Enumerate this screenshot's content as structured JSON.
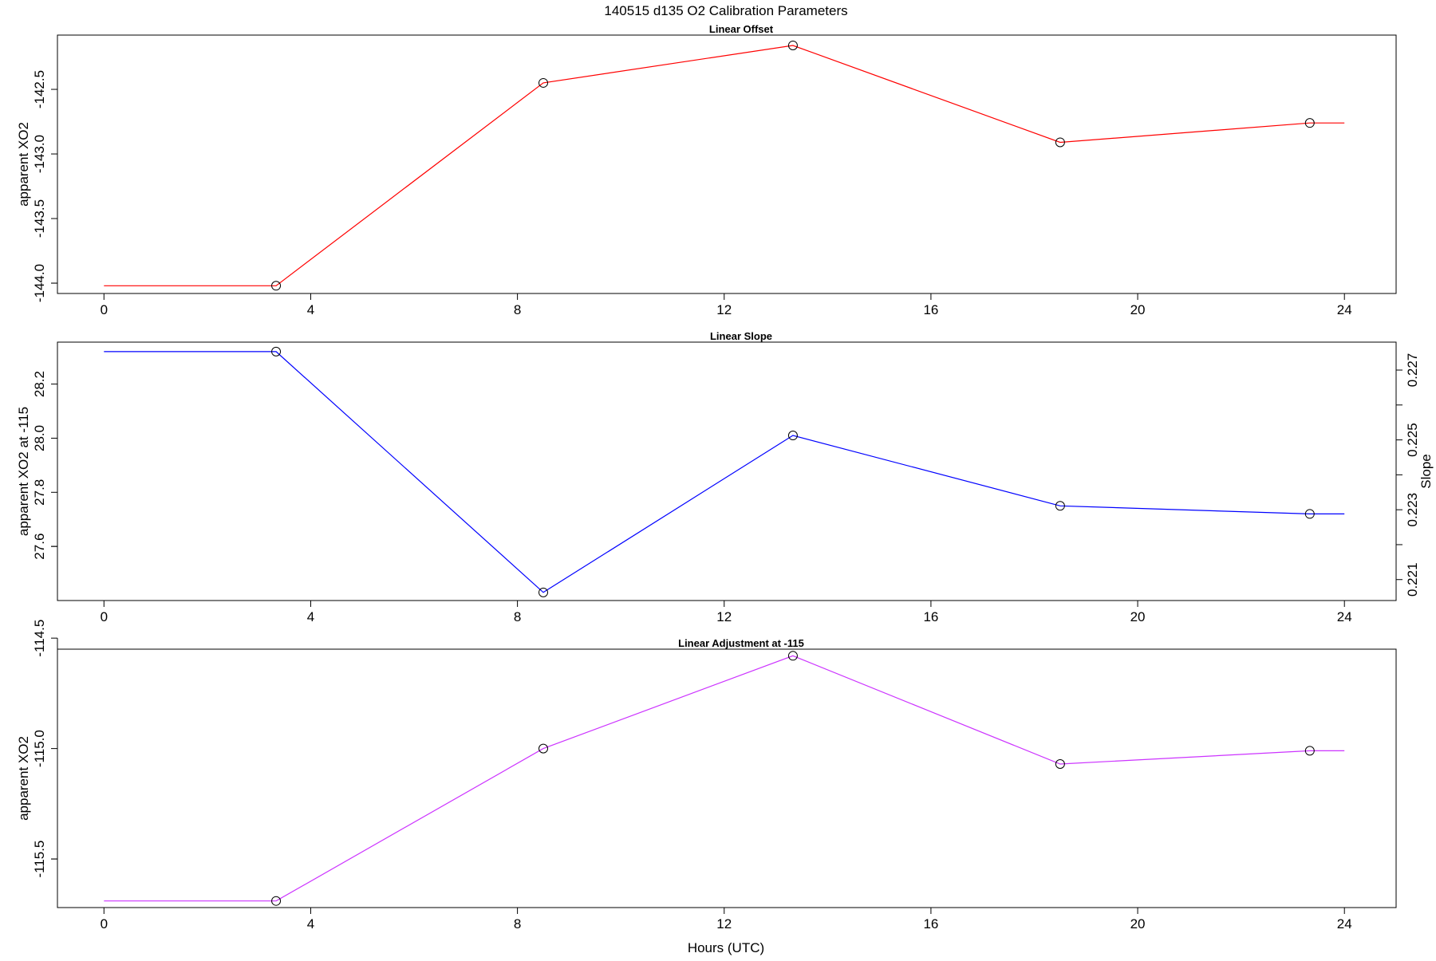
{
  "figure": {
    "title": "140515   d135   O2 Calibration Parameters",
    "xlabel": "Hours (UTC)"
  },
  "chart_data": [
    {
      "type": "line",
      "title": "Linear Offset",
      "xlabel": "",
      "ylabel": "apparent XO2",
      "color": "#ff0000",
      "x": [
        0,
        3.33,
        8.5,
        13.33,
        18.5,
        23.33,
        24
      ],
      "values": [
        -144.02,
        -144.02,
        -142.45,
        -142.16,
        -142.91,
        -142.76,
        -142.76
      ],
      "markers": [
        false,
        true,
        true,
        true,
        true,
        true,
        false
      ],
      "xlim": [
        -0.9,
        25.0
      ],
      "ylim": [
        -144.08,
        -142.08
      ],
      "xticks": [
        0,
        4,
        8,
        12,
        16,
        20,
        24
      ],
      "yticks": [
        -144.0,
        -143.5,
        -143.0,
        -142.5
      ],
      "ytick_labels": [
        "-144.0",
        "-143.5",
        "-143.0",
        "-142.5"
      ]
    },
    {
      "type": "line",
      "title": "Linear Slope",
      "xlabel": "",
      "ylabel": "apparent XO2 at -115",
      "y2label": "Slope",
      "color": "#0000ff",
      "x": [
        0,
        3.33,
        8.5,
        13.33,
        18.5,
        23.33,
        24
      ],
      "values": [
        28.32,
        28.32,
        27.43,
        28.01,
        27.75,
        27.72,
        27.72
      ],
      "markers": [
        false,
        true,
        true,
        true,
        true,
        true,
        false
      ],
      "xlim": [
        -0.9,
        25.0
      ],
      "ylim": [
        27.4,
        28.355
      ],
      "xticks": [
        0,
        4,
        8,
        12,
        16,
        20,
        24
      ],
      "yticks": [
        27.6,
        27.8,
        28.0,
        28.2
      ],
      "ytick_labels": [
        "27.6",
        "27.8",
        "28.0",
        "28.2"
      ],
      "y2lim": [
        0.2204,
        0.2278
      ],
      "y2ticks": [
        0.221,
        0.222,
        0.223,
        0.224,
        0.225,
        0.226,
        0.227
      ],
      "y2tick_labels": [
        "0.221",
        "",
        "0.223",
        "",
        "0.225",
        "",
        "0.227"
      ]
    },
    {
      "type": "line",
      "title": "Linear Adjustment at -115",
      "xlabel": "Hours (UTC)",
      "ylabel": "apparent XO2",
      "color": "#cc33ff",
      "x": [
        0,
        3.33,
        8.5,
        13.33,
        18.5,
        23.33,
        24
      ],
      "values": [
        -115.69,
        -115.69,
        -115.0,
        -114.58,
        -115.07,
        -115.01,
        -115.01
      ],
      "markers": [
        false,
        true,
        true,
        true,
        true,
        true,
        false
      ],
      "xlim": [
        -0.9,
        25.0
      ],
      "ylim": [
        -115.72,
        -114.55
      ],
      "xticks": [
        0,
        4,
        8,
        12,
        16,
        20,
        24
      ],
      "yticks": [
        -115.5,
        -115.0,
        -114.5
      ],
      "ytick_labels": [
        "-115.5",
        "-115.0",
        "-114.5"
      ]
    }
  ]
}
